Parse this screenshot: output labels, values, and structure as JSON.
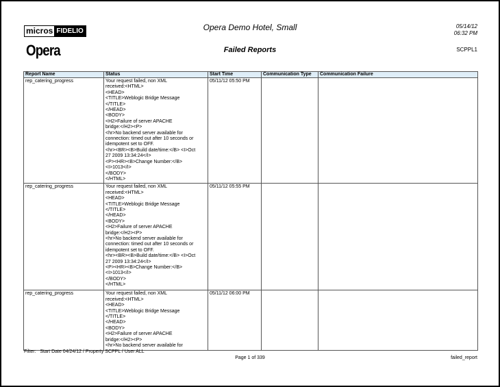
{
  "header": {
    "logo_micros": "micros",
    "logo_fidelio": "FIDELIO",
    "logo_opera": "Opera",
    "hotel": "Opera Demo Hotel, Small",
    "title": "Failed Reports",
    "date": "05/14/12",
    "time": "06:32 PM",
    "code": "SCPPL1"
  },
  "table": {
    "columns": [
      "Report Name",
      "Status",
      "Start Time",
      "Communication Type",
      "Communication Failure"
    ],
    "rows": [
      {
        "name": "rep_catering_progress",
        "status": "Your request failed, non XML\nreceived:<HTML>\n<HEAD>\n<TITLE>Weblogic Bridge Message\n</TITLE>\n</HEAD>\n <BODY>\n<H2>Failure of server APACHE\nbridge:</H2><P>\n<hr>No backend server available for\nconnection: timed out after 10 seconds or\nidempotent set to OFF.\n<hr><BR><B>Build date/time:</B> <I>Oct\n27 2009 13:34:24</I>\n<P><HR><B>Change Number:</B>\n<I>1013</I>\n </BODY>\n</HTML>",
        "start": "05/11/12 05:50 PM",
        "type": "",
        "failure": ""
      },
      {
        "name": "rep_catering_progress",
        "status": "Your request failed, non XML\nreceived:<HTML>\n<HEAD>\n<TITLE>Weblogic Bridge Message\n</TITLE>\n</HEAD>\n <BODY>\n<H2>Failure of server APACHE\nbridge:</H2><P>\n<hr>No backend server available for\nconnection: timed out after 10 seconds or\nidempotent set to OFF.\n<hr><BR><B>Build date/time:</B> <I>Oct\n27 2009 13:34:24</I>\n<P><HR><B>Change Number:</B>\n<I>1013</I>\n </BODY>\n</HTML>",
        "start": "05/11/12 05:55 PM",
        "type": "",
        "failure": ""
      },
      {
        "name": "rep_catering_progress",
        "status": "Your request failed, non XML\nreceived:<HTML>\n<HEAD>\n<TITLE>Weblogic Bridge Message\n</TITLE>\n</HEAD>\n <BODY>\n<H2>Failure of server APACHE\nbridge:</H2><P>\n<hr>No backend server available for",
        "start": "05/11/12 06:00 PM",
        "type": "",
        "failure": ""
      }
    ]
  },
  "footer": {
    "filter_label": "Filter:",
    "filter": "Start Date 04/24/12 / Property SCPPL / User ALL",
    "page": "Page 1 of 339",
    "report_id": "failed_report"
  }
}
